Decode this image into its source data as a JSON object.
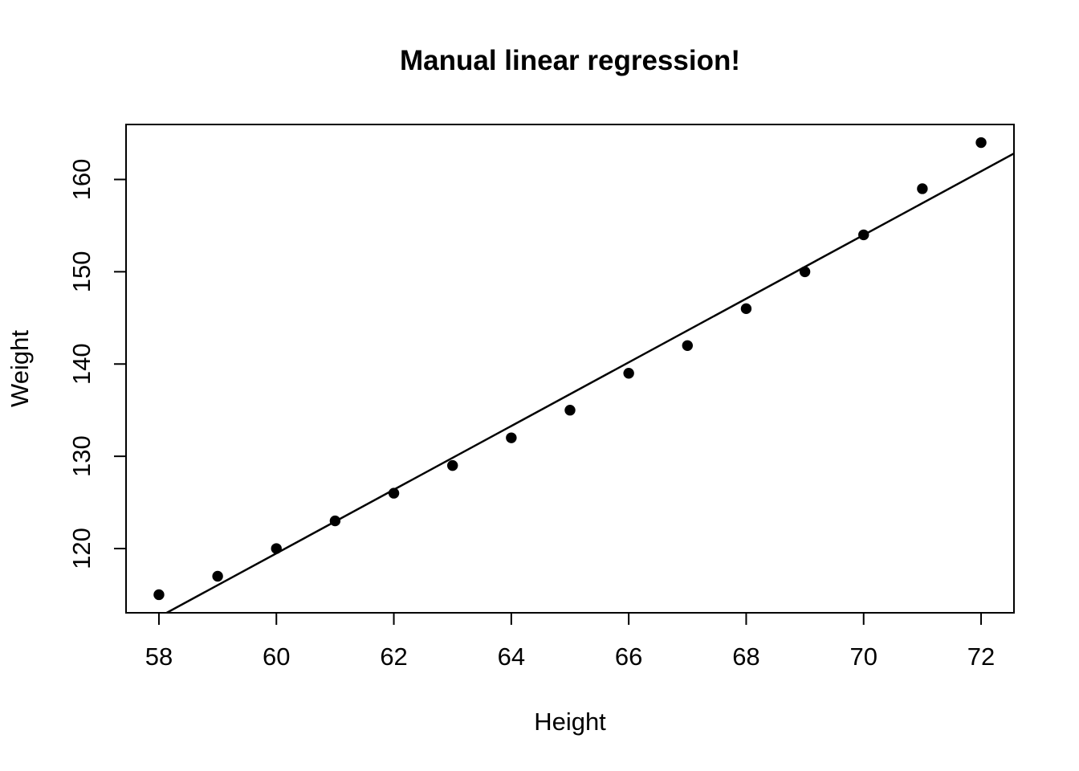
{
  "page": {
    "background_color": "#ffffff",
    "foreground_color": "#000000"
  },
  "chart_data": {
    "type": "scatter",
    "title": "Manual linear regression!",
    "xlabel": "Height",
    "ylabel": "Weight",
    "x": [
      58,
      59,
      60,
      61,
      62,
      63,
      64,
      65,
      66,
      67,
      68,
      69,
      70,
      71,
      72
    ],
    "y": [
      115,
      117,
      120,
      123,
      126,
      129,
      132,
      135,
      139,
      142,
      146,
      150,
      154,
      159,
      164
    ],
    "xlim": [
      57.44,
      72.56
    ],
    "ylim": [
      113.04,
      165.96
    ],
    "x_ticks": [
      58,
      60,
      62,
      64,
      66,
      68,
      70,
      72
    ],
    "y_ticks": [
      120,
      130,
      140,
      150,
      160
    ],
    "regression_line": {
      "intercept": -87.517,
      "slope": 3.45
    },
    "point_style": "filled-circle",
    "point_color": "#000000",
    "line_color": "#000000",
    "axis_color": "#000000",
    "grid": false,
    "legend": false
  }
}
